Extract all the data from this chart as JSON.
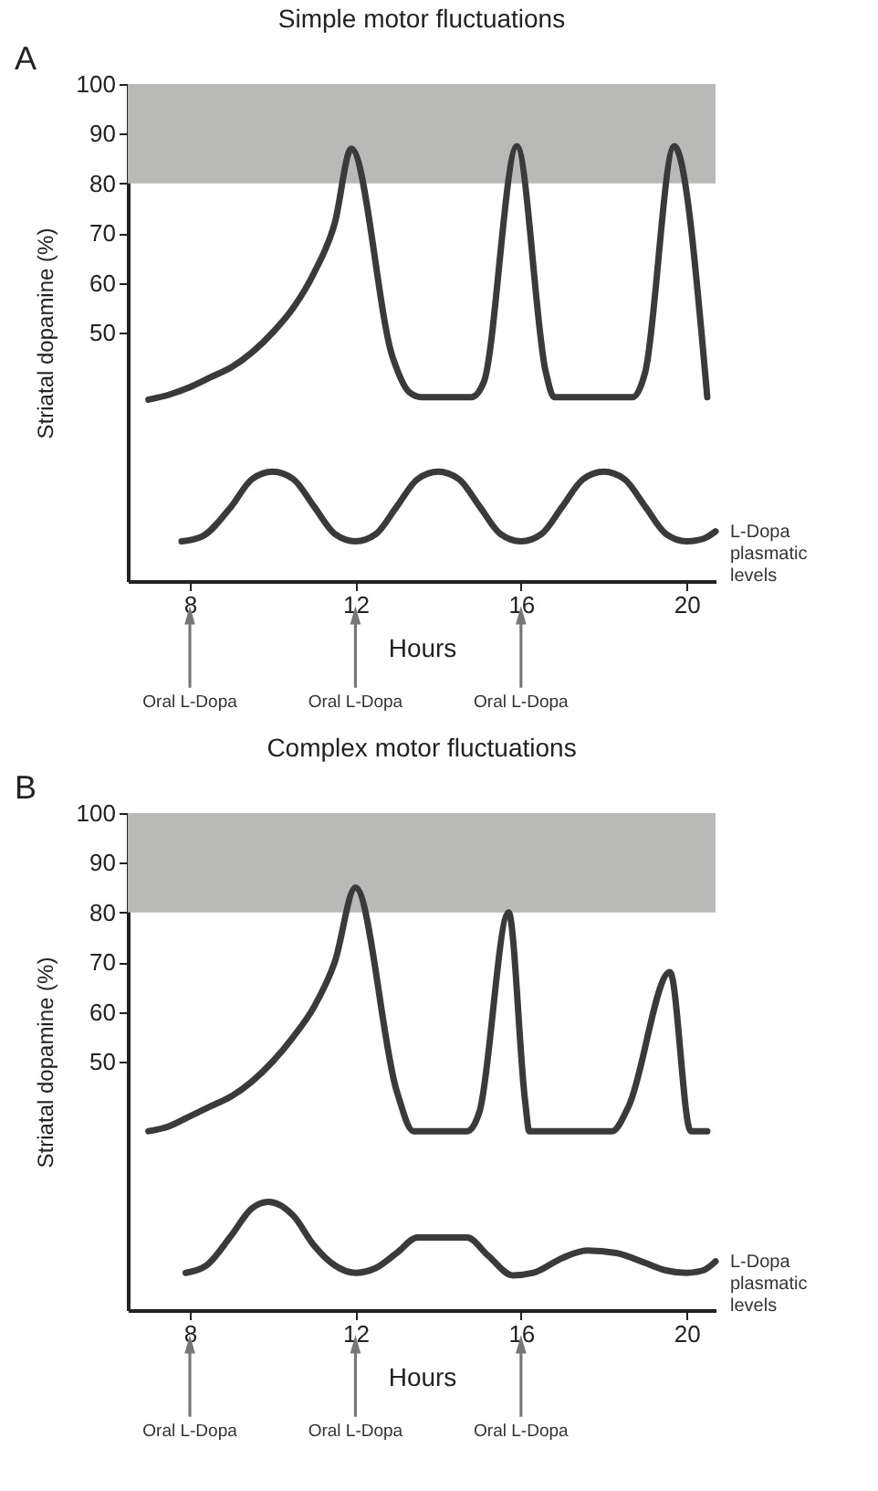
{
  "chart_data": [
    {
      "type": "line",
      "title": "Simple motor fluctuations",
      "xlabel": "Hours",
      "ylabel": "Striatal dopamine (%)",
      "xlim": [
        6.5,
        20.7
      ],
      "xticks": [
        8,
        12,
        16,
        20
      ],
      "ylim": [
        0,
        100
      ],
      "yticks": [
        50,
        60,
        70,
        80,
        90,
        100
      ],
      "bands": [
        {
          "axis": "y",
          "from": 80,
          "to": 100,
          "color": "#b9bab8"
        }
      ],
      "series": [
        {
          "color": "#3a3a3a",
          "x": [
            7,
            7.5,
            8,
            8.5,
            9,
            9.5,
            10,
            10.5,
            11,
            11.5,
            11.9,
            12.9,
            13.3,
            13.6,
            14.8,
            15.1,
            15.9,
            16.6,
            16.8,
            18.7,
            19,
            19.7,
            20.5
          ],
          "values": [
            36.5,
            37.5,
            39,
            41,
            43,
            46,
            50,
            55,
            62,
            72,
            87,
            45,
            38,
            37,
            37,
            40,
            87.5,
            42,
            37,
            37,
            42,
            87.5,
            37
          ]
        },
        {
          "name": "L-Dopa plasmatic levels",
          "color": "#3a3a3a",
          "x": [
            7.8,
            8.3,
            9,
            9.5,
            10,
            10.5,
            11,
            11.5,
            12,
            12.5,
            13,
            13.5,
            14,
            14.5,
            15,
            15.5,
            16,
            16.5,
            17,
            17.5,
            18,
            18.5,
            19,
            19.5,
            20,
            20.4,
            20.7
          ],
          "values": [
            8,
            9,
            15,
            20.5,
            22,
            20.5,
            15,
            9.5,
            8,
            9.5,
            15,
            20.5,
            22,
            20.5,
            15,
            9.5,
            8,
            9.5,
            15,
            20.5,
            22,
            20.5,
            15,
            9.5,
            8,
            8.5,
            10
          ]
        }
      ],
      "annotations": [
        "A",
        "Oral L-Dopa",
        "Oral L-Dopa",
        "Oral L-Dopa"
      ]
    },
    {
      "type": "line",
      "title": "Complex motor fluctuations",
      "xlabel": "Hours",
      "ylabel": "Striatal dopamine (%)",
      "xlim": [
        6.5,
        20.7
      ],
      "xticks": [
        8,
        12,
        16,
        20
      ],
      "ylim": [
        0,
        100
      ],
      "yticks": [
        50,
        60,
        70,
        80,
        90,
        100
      ],
      "bands": [
        {
          "axis": "y",
          "from": 80,
          "to": 100,
          "color": "#b9bab8"
        }
      ],
      "series": [
        {
          "color": "#3a3a3a",
          "x": [
            7,
            7.5,
            8,
            8.5,
            9,
            9.5,
            10,
            10.5,
            11,
            11.5,
            12,
            13,
            13.4,
            14.7,
            15,
            15.7,
            16.1,
            16.2,
            18.2,
            18.6,
            19.6,
            20.1,
            20.5
          ],
          "values": [
            36,
            37,
            39,
            41,
            43,
            46,
            50,
            55,
            61,
            70,
            85,
            44,
            36,
            36,
            40,
            80,
            42,
            36,
            36,
            41,
            68,
            36,
            36
          ]
        },
        {
          "name": "L-Dopa plasmatic levels",
          "color": "#3a3a3a",
          "x": [
            7.9,
            8.4,
            9,
            9.5,
            9.9,
            10.5,
            11,
            11.5,
            12,
            12.5,
            13,
            13.5,
            14.7,
            15.2,
            15.8,
            16.3,
            17,
            17.6,
            18.3,
            19,
            19.5,
            20,
            20.4,
            20.7
          ],
          "values": [
            7.5,
            9,
            15,
            20.5,
            21.8,
            19,
            13,
            9,
            7.5,
            8.5,
            11.5,
            14.6,
            14.6,
            11,
            7,
            7.5,
            10.5,
            12,
            11.5,
            9.5,
            8,
            7.5,
            8,
            9.8
          ]
        }
      ],
      "annotations": [
        "B",
        "Oral L-Dopa",
        "Oral L-Dopa",
        "Oral L-Dopa"
      ]
    }
  ]
}
